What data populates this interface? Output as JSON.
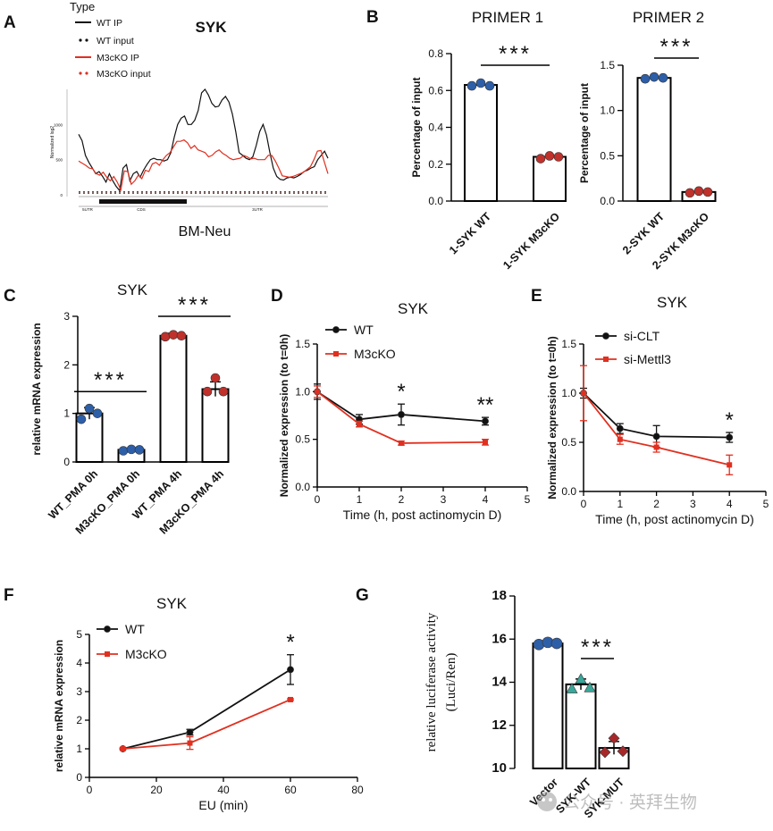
{
  "panels": {
    "A": {
      "label": "A"
    },
    "B": {
      "label": "B"
    },
    "C": {
      "label": "C"
    },
    "D": {
      "label": "D"
    },
    "E": {
      "label": "E"
    },
    "F": {
      "label": "F"
    },
    "G": {
      "label": "G"
    }
  },
  "watermark": "公众号 · 英拜生物",
  "chart_data": [
    {
      "id": "A",
      "type": "line",
      "title": "SYK",
      "subtitle": "BM-Neu",
      "legend_title": "Type",
      "ylabel": "Normalized log2",
      "yticks": [
        "1000",
        "500",
        "0"
      ],
      "regions": [
        "5UTR",
        "CDS",
        "3UTR"
      ],
      "colors": {
        "wt": "#111111",
        "ko": "#e03020"
      },
      "series": [
        {
          "name": "WT IP",
          "style": "solid",
          "color": "#111111",
          "values": [
            860,
            770,
            560,
            460,
            380,
            300,
            330,
            260,
            180,
            300,
            200,
            120,
            60,
            380,
            430,
            200,
            300,
            330,
            250,
            350,
            430,
            500,
            520,
            500,
            500,
            480,
            500,
            600,
            820,
            1000,
            1090,
            1120,
            1000,
            1000,
            1060,
            1200,
            1450,
            1500,
            1420,
            1300,
            1250,
            1260,
            1350,
            1400,
            1320,
            1150,
            900,
            600,
            560,
            520,
            500,
            540,
            700,
            900,
            1000,
            850,
            600,
            380,
            260,
            220,
            210,
            240,
            250,
            240,
            260,
            290,
            330,
            350,
            380,
            400,
            500,
            560,
            620,
            520
          ]
        },
        {
          "name": "WT input",
          "style": "dotted",
          "color": "#111111",
          "values": [
            40
          ]
        },
        {
          "name": "M3cKO IP",
          "style": "solid",
          "color": "#e03020",
          "values": [
            480,
            450,
            420,
            380,
            370,
            300,
            280,
            320,
            250,
            200,
            260,
            180,
            70,
            340,
            330,
            150,
            200,
            280,
            230,
            350,
            330,
            440,
            460,
            420,
            500,
            560,
            600,
            680,
            760,
            760,
            780,
            740,
            660,
            700,
            640,
            620,
            600,
            540,
            560,
            610,
            640,
            590,
            560,
            520,
            500,
            510,
            520,
            560,
            540,
            510,
            520,
            500,
            500,
            500,
            560,
            560,
            480,
            380,
            270,
            260,
            250,
            260,
            280,
            300,
            320,
            360,
            400,
            500,
            620,
            630,
            460,
            300
          ]
        },
        {
          "name": "M3cKO input",
          "style": "dotted",
          "color": "#e03020",
          "values": [
            20
          ]
        }
      ]
    },
    {
      "id": "B1",
      "type": "bar",
      "title": "PRIMER 1",
      "ylabel": "Percentage of input",
      "categories": [
        "1-SYK WT",
        "1-SYK M3cKO"
      ],
      "values": [
        0.63,
        0.24
      ],
      "points": [
        [
          0.625,
          0.64,
          0.625
        ],
        [
          0.23,
          0.245,
          0.24
        ]
      ],
      "point_colors": [
        "#2d5fa8",
        "#c0312b"
      ],
      "ylim": [
        0,
        0.8
      ],
      "yticks": [
        "0.0",
        "0.2",
        "0.4",
        "0.6",
        "0.8"
      ],
      "significance": "***"
    },
    {
      "id": "B2",
      "type": "bar",
      "title": "PRIMER 2",
      "ylabel": "Percentage of input",
      "categories": [
        "2-SYK WT",
        "2-SYK M3cKO"
      ],
      "values": [
        1.36,
        0.1
      ],
      "points": [
        [
          1.35,
          1.37,
          1.36
        ],
        [
          0.09,
          0.11,
          0.1
        ]
      ],
      "point_colors": [
        "#2d5fa8",
        "#c0312b"
      ],
      "ylim": [
        0,
        1.5
      ],
      "yticks": [
        "0.0",
        "0.5",
        "1.0",
        "1.5"
      ],
      "significance": "***"
    },
    {
      "id": "C",
      "type": "bar",
      "title": "SYK",
      "ylabel": "relative mRNA expression",
      "categories": [
        "WT_PMA 0h",
        "M3cKO_PMA 0h",
        "WT_PMA 4h",
        "M3cKO_PMA 4h"
      ],
      "values": [
        1.0,
        0.25,
        2.6,
        1.5
      ],
      "errors": [
        0.12,
        0.02,
        0.05,
        0.15
      ],
      "points": [
        [
          0.88,
          1.1,
          1.0
        ],
        [
          0.23,
          0.26,
          0.25
        ],
        [
          2.58,
          2.62,
          2.6
        ],
        [
          1.45,
          1.73,
          1.45
        ]
      ],
      "point_colors": [
        "#2d5fa8",
        "#2d5fa8",
        "#c0312b",
        "#c0312b"
      ],
      "ylim": [
        0,
        3
      ],
      "yticks": [
        "0",
        "1",
        "2",
        "3"
      ],
      "significance": [
        {
          "label": "***",
          "from": 0,
          "to": 1,
          "y": 1.45
        },
        {
          "label": "***",
          "from": 2,
          "to": 3,
          "y": 3.0
        }
      ]
    },
    {
      "id": "D",
      "type": "line",
      "title": "SYK",
      "xlabel": "Time (h, post actinomycin D)",
      "ylabel": "Normalized expression (to t=0h)",
      "xlim": [
        0,
        5
      ],
      "ylim": [
        0,
        1.5
      ],
      "xticks": [
        "0",
        "1",
        "2",
        "3",
        "4",
        "5"
      ],
      "yticks": [
        "0.0",
        "0.5",
        "1.0",
        "1.5"
      ],
      "x": [
        0,
        1,
        2,
        4
      ],
      "series": [
        {
          "name": "WT",
          "color": "#111111",
          "values": [
            1.0,
            0.71,
            0.76,
            0.69
          ],
          "errors": [
            0.08,
            0.05,
            0.11,
            0.04
          ]
        },
        {
          "name": "M3cKO",
          "color": "#e03020",
          "values": [
            1.0,
            0.66,
            0.46,
            0.47
          ],
          "errors": [
            0.06,
            0.03,
            0.02,
            0.03
          ]
        }
      ],
      "annotations": [
        {
          "x": 2,
          "label": "*"
        },
        {
          "x": 4,
          "label": "**"
        }
      ]
    },
    {
      "id": "E",
      "type": "line",
      "title": "SYK",
      "xlabel": "Time (h, post actinomycin D)",
      "ylabel": "Normalized expression (to t=0h)",
      "xlim": [
        0,
        5
      ],
      "ylim": [
        0,
        1.5
      ],
      "xticks": [
        "0",
        "1",
        "2",
        "3",
        "4",
        "5"
      ],
      "yticks": [
        "0.0",
        "0.5",
        "1.0",
        "1.5"
      ],
      "x": [
        0,
        1,
        2,
        4
      ],
      "series": [
        {
          "name": "si-CLT",
          "color": "#111111",
          "values": [
            1.0,
            0.64,
            0.56,
            0.55
          ],
          "errors": [
            0.05,
            0.05,
            0.11,
            0.05
          ]
        },
        {
          "name": "si-Mettl3",
          "color": "#e03020",
          "values": [
            1.0,
            0.53,
            0.45,
            0.27
          ],
          "errors": [
            0.28,
            0.05,
            0.05,
            0.1
          ]
        }
      ],
      "annotations": [
        {
          "x": 4,
          "label": "*"
        }
      ]
    },
    {
      "id": "F",
      "type": "line",
      "title": "SYK",
      "xlabel": "EU (min)",
      "ylabel": "relative mRNA expression",
      "xlim": [
        0,
        80
      ],
      "ylim": [
        0,
        5
      ],
      "xticks": [
        "0",
        "20",
        "40",
        "60",
        "80"
      ],
      "yticks": [
        "0",
        "1",
        "2",
        "3",
        "4",
        "5"
      ],
      "x": [
        10,
        30,
        60
      ],
      "series": [
        {
          "name": "WT",
          "color": "#111111",
          "values": [
            1.0,
            1.58,
            3.77
          ],
          "errors": [
            0.02,
            0.1,
            0.52
          ]
        },
        {
          "name": "M3cKO",
          "color": "#e03020",
          "values": [
            1.0,
            1.2,
            2.72
          ],
          "errors": [
            0.02,
            0.22,
            0.03
          ]
        }
      ],
      "annotations": [
        {
          "x": 60,
          "label": "*"
        }
      ]
    },
    {
      "id": "G",
      "type": "bar",
      "title": "",
      "ylabel": "relative luciferase activity",
      "ylabel2": "(Luci/Ren)",
      "categories": [
        "Vector",
        "SYK-WT",
        "SYK-MUT"
      ],
      "values": [
        15.8,
        13.9,
        10.95
      ],
      "errors": [
        0.08,
        0.25,
        0.3
      ],
      "points": [
        [
          15.75,
          15.85,
          15.8
        ],
        [
          13.7,
          14.15,
          13.75
        ],
        [
          10.75,
          11.4,
          10.8
        ]
      ],
      "point_colors": [
        "#2d5fa8",
        "#3aa79a",
        "#a8282a"
      ],
      "point_shapes": [
        "circle",
        "triangle",
        "diamond"
      ],
      "ylim": [
        10,
        18
      ],
      "yticks": [
        "10",
        "12",
        "14",
        "16",
        "18"
      ],
      "significance": [
        {
          "label": "***",
          "from": 1,
          "to": 2,
          "y": 15.1
        }
      ]
    }
  ]
}
